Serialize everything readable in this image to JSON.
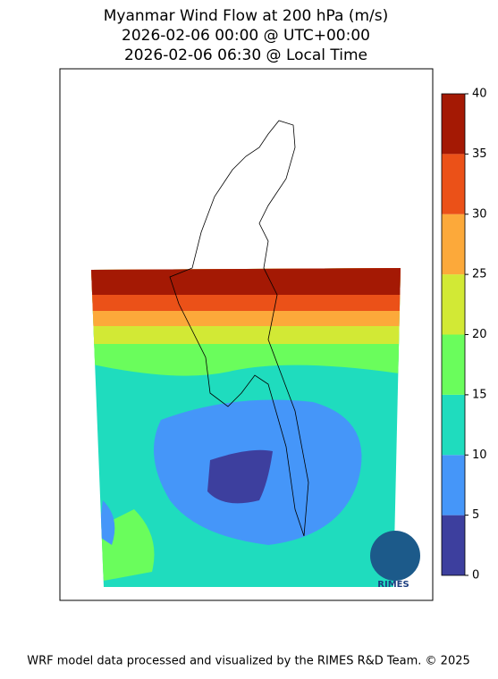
{
  "title": [
    "Myanmar Wind Flow at 200 hPa (m/s)",
    "2026-02-06 00:00 @ UTC+00:00",
    "2026-02-06 06:30 @ Local Time"
  ],
  "colorbar": {
    "lim": [
      0,
      40
    ],
    "ticks": [
      0,
      5,
      10,
      15,
      20,
      25,
      30,
      35,
      40
    ],
    "colors": [
      "#3d3f9e",
      "#4596f9",
      "#1fdcbe",
      "#6afd5c",
      "#d2e935",
      "#fca93a",
      "#eb5118",
      "#a41904"
    ]
  },
  "logo_text": "RIMES",
  "footer": "WRF model data processed and visualized by the RIMES R&D Team. © 2025"
}
